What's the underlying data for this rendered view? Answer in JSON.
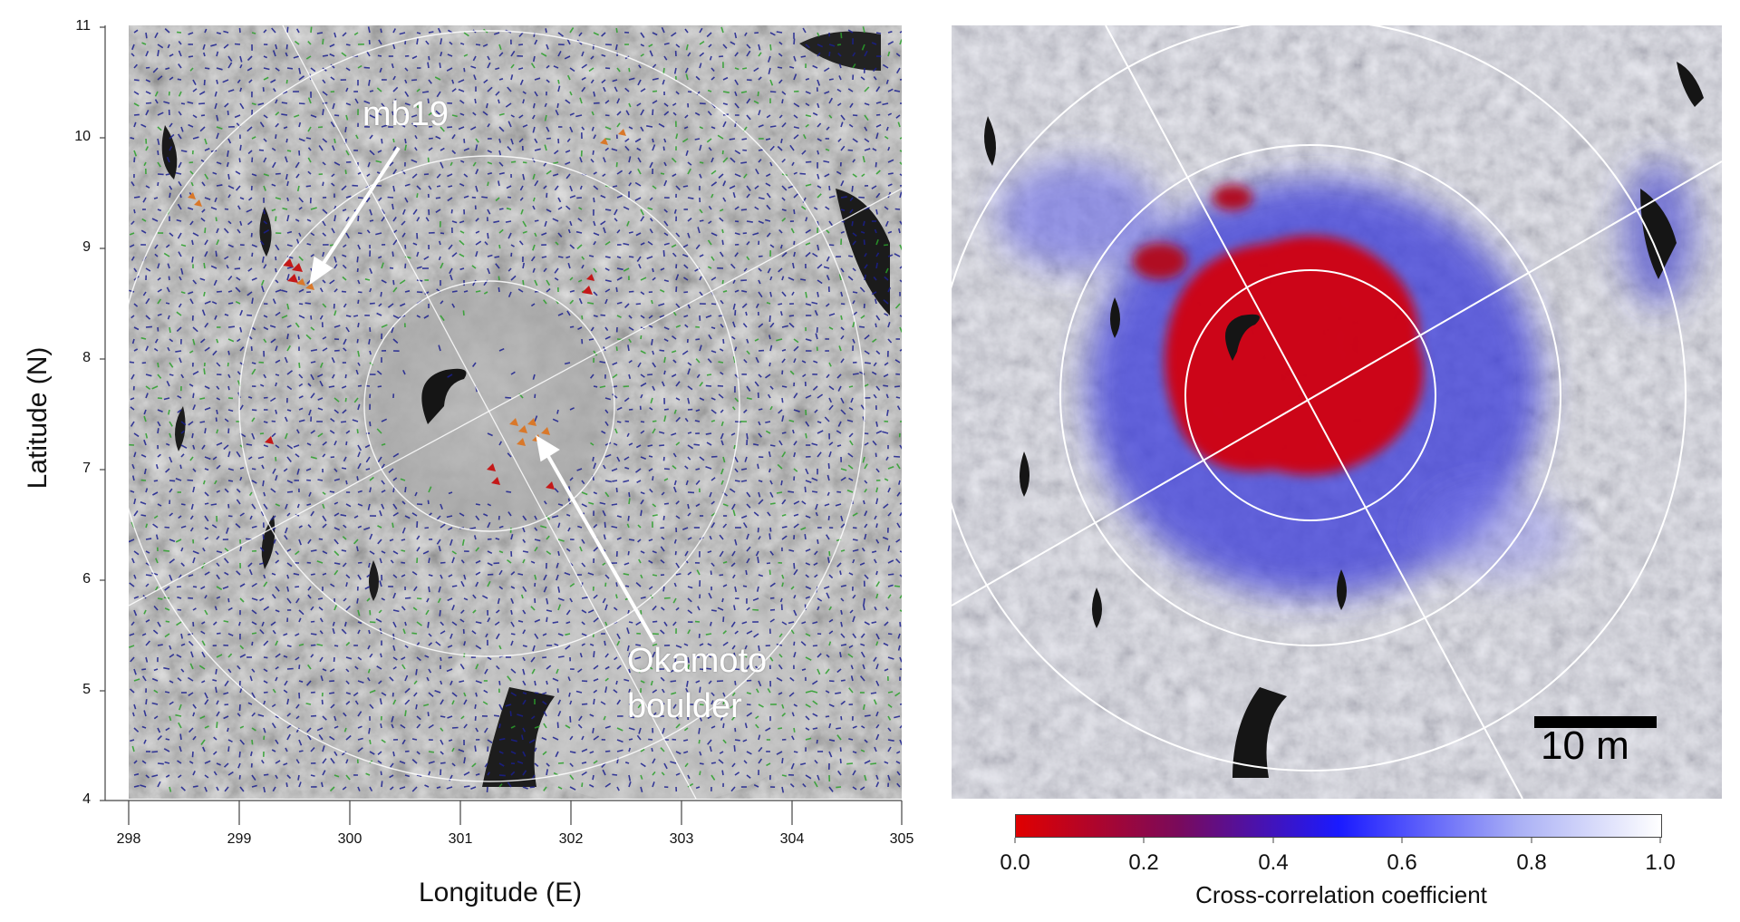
{
  "figure": {
    "left": {
      "ylabel": "Latitude (N)",
      "xlabel": "Longitude (E)",
      "yticks": [
        "11",
        "10",
        "9",
        "8",
        "7",
        "6",
        "5",
        "4"
      ],
      "xticks": [
        "298",
        "299",
        "300",
        "301",
        "302",
        "303",
        "304",
        "305"
      ],
      "annotations": {
        "mb19": "mb19",
        "okamoto_line1": "Okamoto",
        "okamoto_line2": "boulder"
      },
      "vector_colors": {
        "low": "#1a1f8f",
        "mid": "#2aa02a",
        "high_orange": "#d9782a",
        "high_red": "#c41818"
      }
    },
    "right": {
      "scale_bar_label": "10 m",
      "colorbar": {
        "label": "Cross-correlation coefficient",
        "ticks": [
          "0.0",
          "0.2",
          "0.4",
          "0.6",
          "0.8",
          "1.0"
        ],
        "colors": [
          "#e00000",
          "#7a0a5a",
          "#1a1aff",
          "#ffffff"
        ]
      }
    }
  }
}
